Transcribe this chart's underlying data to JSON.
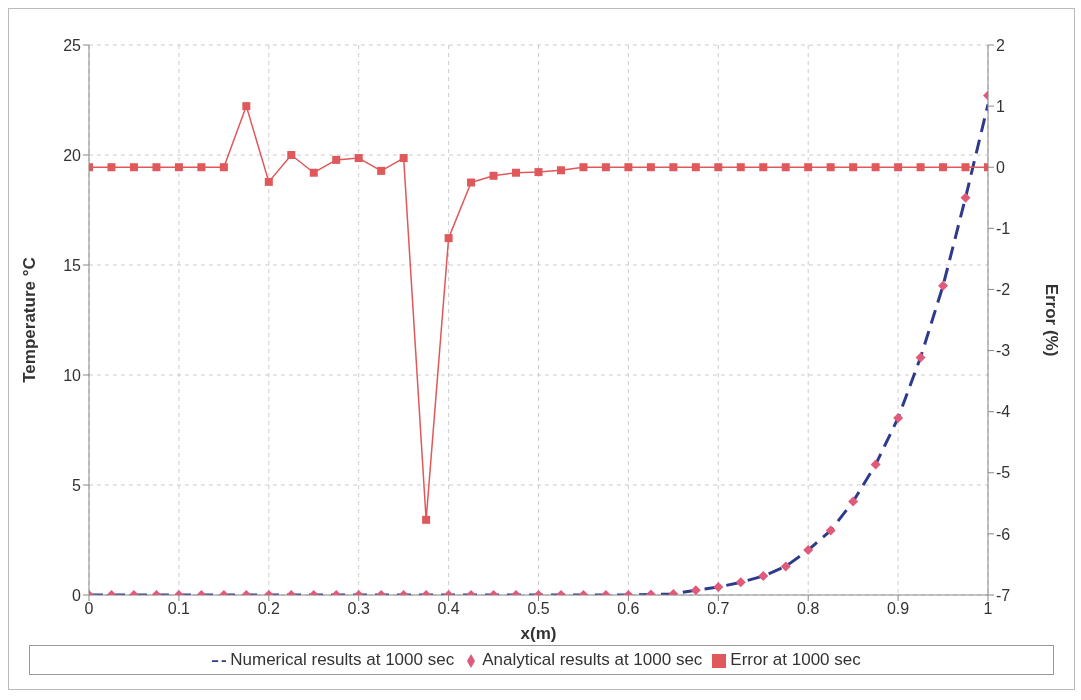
{
  "chart_data": {
    "type": "line",
    "xlabel": "x(m)",
    "ylabel": "Temperature °C",
    "y2label": "Error (%)",
    "x": [
      0,
      0.025,
      0.05,
      0.075,
      0.1,
      0.125,
      0.15,
      0.175,
      0.2,
      0.225,
      0.25,
      0.275,
      0.3,
      0.325,
      0.35,
      0.375,
      0.4,
      0.425,
      0.45,
      0.475,
      0.5,
      0.525,
      0.55,
      0.575,
      0.6,
      0.625,
      0.65,
      0.675,
      0.7,
      0.725,
      0.75,
      0.775,
      0.8,
      0.825,
      0.85,
      0.875,
      0.9,
      0.925,
      0.95,
      0.975,
      1
    ],
    "series": [
      {
        "name": "Numerical results at 1000 sec",
        "color": "#2e3a8c",
        "line_style": "dashed",
        "marker": "none",
        "values": [
          0,
          0,
          0,
          0,
          0,
          0,
          0,
          0,
          0,
          0,
          0,
          0,
          0,
          0,
          0,
          0,
          0,
          0,
          0,
          0,
          0,
          0,
          0,
          0,
          0,
          0.02,
          0.05,
          0.22,
          0.36,
          0.58,
          0.86,
          1.3,
          2.04,
          2.93,
          4.25,
          5.93,
          8.05,
          10.8,
          14.06,
          18.06,
          22.3
        ]
      },
      {
        "name": "Analytical results at 1000 sec",
        "type": "scatter",
        "color": "#e05a7a",
        "marker": "diamond",
        "values": [
          0,
          0,
          0,
          0,
          0,
          0,
          0,
          0,
          0,
          0,
          0,
          0,
          0,
          0,
          0,
          0,
          0,
          0,
          0,
          0,
          0,
          0,
          0,
          0,
          0,
          0.02,
          0.05,
          0.22,
          0.36,
          0.58,
          0.86,
          1.3,
          2.04,
          2.93,
          4.25,
          5.93,
          8.05,
          10.8,
          14.06,
          18.06,
          22.7
        ]
      },
      {
        "name": "Error at 1000 sec",
        "axis": "y2",
        "color": "#e0585a",
        "line_style": "solid",
        "marker": "square",
        "values": [
          0,
          0,
          0,
          0,
          0,
          0,
          0,
          1.0,
          -0.24,
          0.2,
          -0.09,
          0.12,
          0.15,
          -0.06,
          0.15,
          -5.77,
          -1.16,
          -0.25,
          -0.14,
          -0.09,
          -0.08,
          -0.05,
          0,
          0,
          0,
          0,
          0,
          0,
          0,
          0,
          0,
          0,
          0,
          0,
          0,
          0,
          0,
          0,
          0,
          0,
          0
        ]
      }
    ],
    "xlim": [
      0,
      1
    ],
    "xticks": [
      0,
      0.1,
      0.2,
      0.3,
      0.4,
      0.5,
      0.6,
      0.7,
      0.8,
      0.9,
      1
    ],
    "ylim": [
      0,
      25
    ],
    "yticks": [
      0,
      5,
      10,
      15,
      20,
      25
    ],
    "y2lim": [
      -7,
      2
    ],
    "y2ticks": [
      -7,
      -6,
      -5,
      -4,
      -3,
      -2,
      -1,
      0,
      1,
      2
    ],
    "grid": true,
    "legend": "bottom"
  }
}
